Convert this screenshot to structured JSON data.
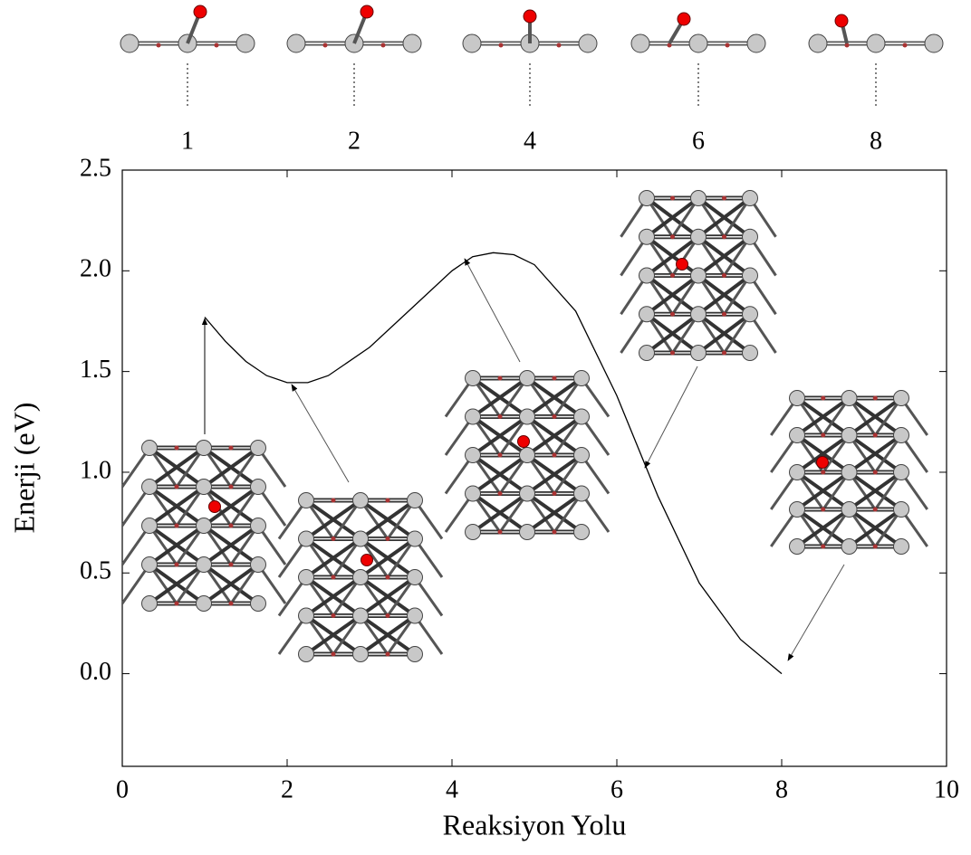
{
  "chart_data": {
    "type": "line",
    "xlabel": "Reaksiyon Yolu",
    "ylabel": "Enerji (eV)",
    "structure_labels": [
      "1",
      "2",
      "4",
      "6",
      "8"
    ],
    "x": [
      1,
      1.25,
      1.5,
      1.75,
      2,
      2.25,
      2.5,
      3,
      3.5,
      4,
      4.25,
      4.5,
      4.75,
      5,
      5.5,
      6,
      6.5,
      7,
      7.5,
      8
    ],
    "values": [
      1.77,
      1.65,
      1.55,
      1.48,
      1.445,
      1.445,
      1.48,
      1.62,
      1.81,
      2.0,
      2.07,
      2.09,
      2.08,
      2.03,
      1.8,
      1.38,
      0.88,
      0.45,
      0.17,
      0.0
    ],
    "color": "#000000",
    "xlim": [
      0,
      10
    ],
    "xticks": [
      0,
      2,
      4,
      6,
      8,
      10
    ],
    "ylim": [
      -0.46,
      2.5
    ],
    "yticks": [
      {
        "value": 0,
        "label": "0.0"
      },
      0.5,
      {
        "value": 1,
        "label": "1.0"
      },
      1.5,
      {
        "value": 2,
        "label": "2.0"
      },
      2.5
    ]
  }
}
